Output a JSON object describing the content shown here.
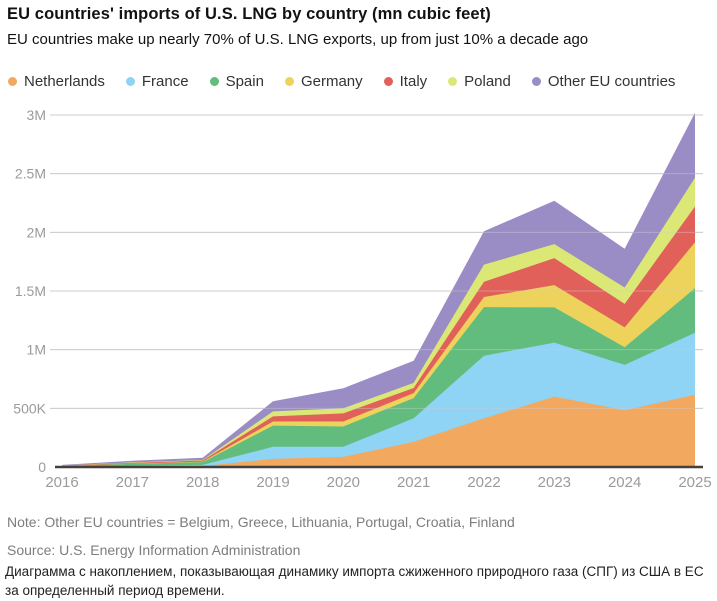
{
  "header": {
    "title": "EU countries' imports of U.S. LNG by country (mn cubic feet)",
    "subtitle": "EU countries make up nearly 70% of U.S. LNG exports, up from just 10% a decade ago"
  },
  "chart_data": {
    "type": "area",
    "stacked": true,
    "title": "EU countries' imports of U.S. LNG by country (mn cubic feet)",
    "unit": "mn cubic feet",
    "x": [
      2016,
      2017,
      2018,
      2019,
      2020,
      2021,
      2022,
      2023,
      2024,
      2025
    ],
    "series": [
      {
        "name": "Netherlands",
        "color": "#F2A95F",
        "values": [
          2000,
          5000,
          8000,
          69000,
          86000,
          215000,
          415000,
          600000,
          483000,
          615000
        ]
      },
      {
        "name": "France",
        "color": "#8FD3F5",
        "values": [
          2000,
          5000,
          10000,
          103000,
          86000,
          200000,
          534000,
          460000,
          387000,
          530000
        ]
      },
      {
        "name": "Spain",
        "color": "#62BC7D",
        "values": [
          6000,
          16000,
          24000,
          181000,
          173000,
          172000,
          414000,
          300000,
          150000,
          380000
        ]
      },
      {
        "name": "Germany",
        "color": "#EDD35B",
        "values": [
          1000,
          3000,
          4000,
          35000,
          43000,
          43000,
          86000,
          190000,
          170000,
          390000
        ]
      },
      {
        "name": "Italy",
        "color": "#E2605A",
        "values": [
          2000,
          6000,
          9000,
          43000,
          69000,
          43000,
          129000,
          230000,
          200000,
          305000
        ]
      },
      {
        "name": "Poland",
        "color": "#DBE876",
        "values": [
          1000,
          4000,
          5000,
          43000,
          43000,
          44000,
          147000,
          120000,
          140000,
          245000
        ]
      },
      {
        "name": "Other EU countries",
        "color": "#9A8CC5",
        "values": [
          4000,
          14000,
          18000,
          86000,
          172000,
          189000,
          284000,
          370000,
          330000,
          555000
        ]
      }
    ],
    "ylim": [
      0,
      3000000
    ],
    "yticks": [
      {
        "value": 0,
        "label": "0"
      },
      {
        "value": 500000,
        "label": "500K"
      },
      {
        "value": 1000000,
        "label": "1M"
      },
      {
        "value": 1500000,
        "label": "1.5M"
      },
      {
        "value": 2000000,
        "label": "2M"
      },
      {
        "value": 2500000,
        "label": "2.5M"
      },
      {
        "value": 3000000,
        "label": "3M"
      }
    ],
    "grid": true,
    "legend_position": "top"
  },
  "colors": {
    "gridline": "#cccccc",
    "baseline": "#44403a",
    "tick_label": "#9b9b9b"
  },
  "footer": {
    "note": "Note: Other EU countries = Belgium, Greece, Lithuania, Portugal, Croatia, Finland",
    "source": "Source: U.S. Energy Information Administration",
    "caption_ru": "Диаграмма с накоплением, показывающая динамику импорта сжиженного природного газа (СПГ) из США в ЕС за определенный период времени."
  }
}
